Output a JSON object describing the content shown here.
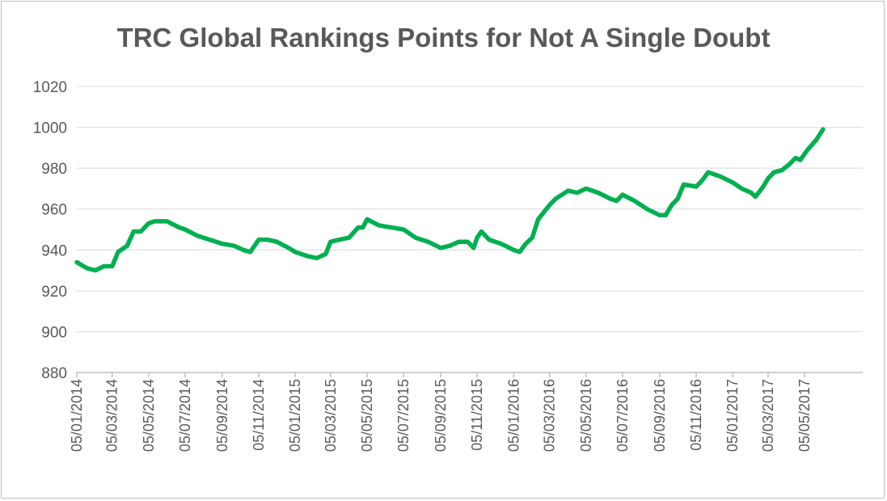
{
  "chart_data": {
    "type": "line",
    "title": "TRC Global Rankings Points for Not A Single Doubt",
    "xlabel": "",
    "ylabel": "",
    "ylim": [
      880,
      1020
    ],
    "yticks": [
      "880",
      "900",
      "920",
      "940",
      "960",
      "980",
      "1000",
      "1020"
    ],
    "xticks": [
      "05/01/2014",
      "05/03/2014",
      "05/05/2014",
      "05/07/2014",
      "05/09/2014",
      "05/11/2014",
      "05/01/2015",
      "05/03/2015",
      "05/05/2015",
      "05/07/2015",
      "05/09/2015",
      "05/11/2015",
      "05/01/2016",
      "05/03/2016",
      "05/05/2016",
      "05/07/2016",
      "05/09/2016",
      "05/11/2016",
      "05/01/2017",
      "05/03/2017",
      "05/05/2017"
    ],
    "grid": true,
    "legend": "none",
    "series_color": "#00b050",
    "points": [
      [
        "05/01/2014",
        934
      ],
      [
        "22/01/2014",
        931
      ],
      [
        "05/02/2014",
        930
      ],
      [
        "19/02/2014",
        932
      ],
      [
        "05/03/2014",
        932
      ],
      [
        "15/03/2014",
        939
      ],
      [
        "30/03/2014",
        942
      ],
      [
        "10/04/2014",
        949
      ],
      [
        "22/04/2014",
        949
      ],
      [
        "05/05/2014",
        953
      ],
      [
        "15/05/2014",
        954
      ],
      [
        "05/06/2014",
        954
      ],
      [
        "25/06/2014",
        951
      ],
      [
        "05/07/2014",
        950
      ],
      [
        "25/07/2014",
        947
      ],
      [
        "15/08/2014",
        945
      ],
      [
        "05/09/2014",
        943
      ],
      [
        "25/09/2014",
        942
      ],
      [
        "10/10/2014",
        940
      ],
      [
        "22/10/2014",
        939
      ],
      [
        "05/11/2014",
        945
      ],
      [
        "20/11/2014",
        945
      ],
      [
        "05/12/2014",
        944
      ],
      [
        "25/12/2014",
        941
      ],
      [
        "05/01/2015",
        939
      ],
      [
        "25/01/2015",
        937
      ],
      [
        "10/02/2015",
        936
      ],
      [
        "25/02/2015",
        938
      ],
      [
        "05/03/2015",
        944
      ],
      [
        "20/03/2015",
        945
      ],
      [
        "05/04/2015",
        946
      ],
      [
        "20/04/2015",
        951
      ],
      [
        "28/04/2015",
        951
      ],
      [
        "05/05/2015",
        955
      ],
      [
        "25/05/2015",
        952
      ],
      [
        "15/06/2015",
        951
      ],
      [
        "05/07/2015",
        950
      ],
      [
        "25/07/2015",
        946
      ],
      [
        "15/08/2015",
        944
      ],
      [
        "05/09/2015",
        941
      ],
      [
        "20/09/2015",
        942
      ],
      [
        "05/10/2015",
        944
      ],
      [
        "20/10/2015",
        944
      ],
      [
        "30/10/2015",
        941
      ],
      [
        "05/11/2015",
        946
      ],
      [
        "12/11/2015",
        949
      ],
      [
        "25/11/2015",
        945
      ],
      [
        "15/12/2015",
        943
      ],
      [
        "05/01/2016",
        940
      ],
      [
        "15/01/2016",
        939
      ],
      [
        "25/01/2016",
        943
      ],
      [
        "05/02/2016",
        946
      ],
      [
        "15/02/2016",
        955
      ],
      [
        "05/03/2016",
        962
      ],
      [
        "15/03/2016",
        965
      ],
      [
        "05/04/2016",
        969
      ],
      [
        "20/04/2016",
        968
      ],
      [
        "05/05/2016",
        970
      ],
      [
        "25/05/2016",
        968
      ],
      [
        "15/06/2016",
        965
      ],
      [
        "25/06/2016",
        964
      ],
      [
        "05/07/2016",
        967
      ],
      [
        "25/07/2016",
        964
      ],
      [
        "15/08/2016",
        960
      ],
      [
        "05/09/2016",
        957
      ],
      [
        "15/09/2016",
        957
      ],
      [
        "25/09/2016",
        962
      ],
      [
        "05/10/2016",
        965
      ],
      [
        "15/10/2016",
        972
      ],
      [
        "05/11/2016",
        971
      ],
      [
        "15/11/2016",
        974
      ],
      [
        "25/11/2016",
        978
      ],
      [
        "15/12/2016",
        976
      ],
      [
        "05/01/2017",
        973
      ],
      [
        "20/01/2017",
        970
      ],
      [
        "05/02/2017",
        968
      ],
      [
        "12/02/2017",
        966
      ],
      [
        "25/02/2017",
        971
      ],
      [
        "05/03/2017",
        975
      ],
      [
        "15/03/2017",
        978
      ],
      [
        "28/03/2017",
        979
      ],
      [
        "10/04/2017",
        982
      ],
      [
        "20/04/2017",
        985
      ],
      [
        "28/04/2017",
        984
      ],
      [
        "10/05/2017",
        989
      ],
      [
        "25/05/2017",
        994
      ],
      [
        "05/06/2017",
        999
      ]
    ]
  }
}
